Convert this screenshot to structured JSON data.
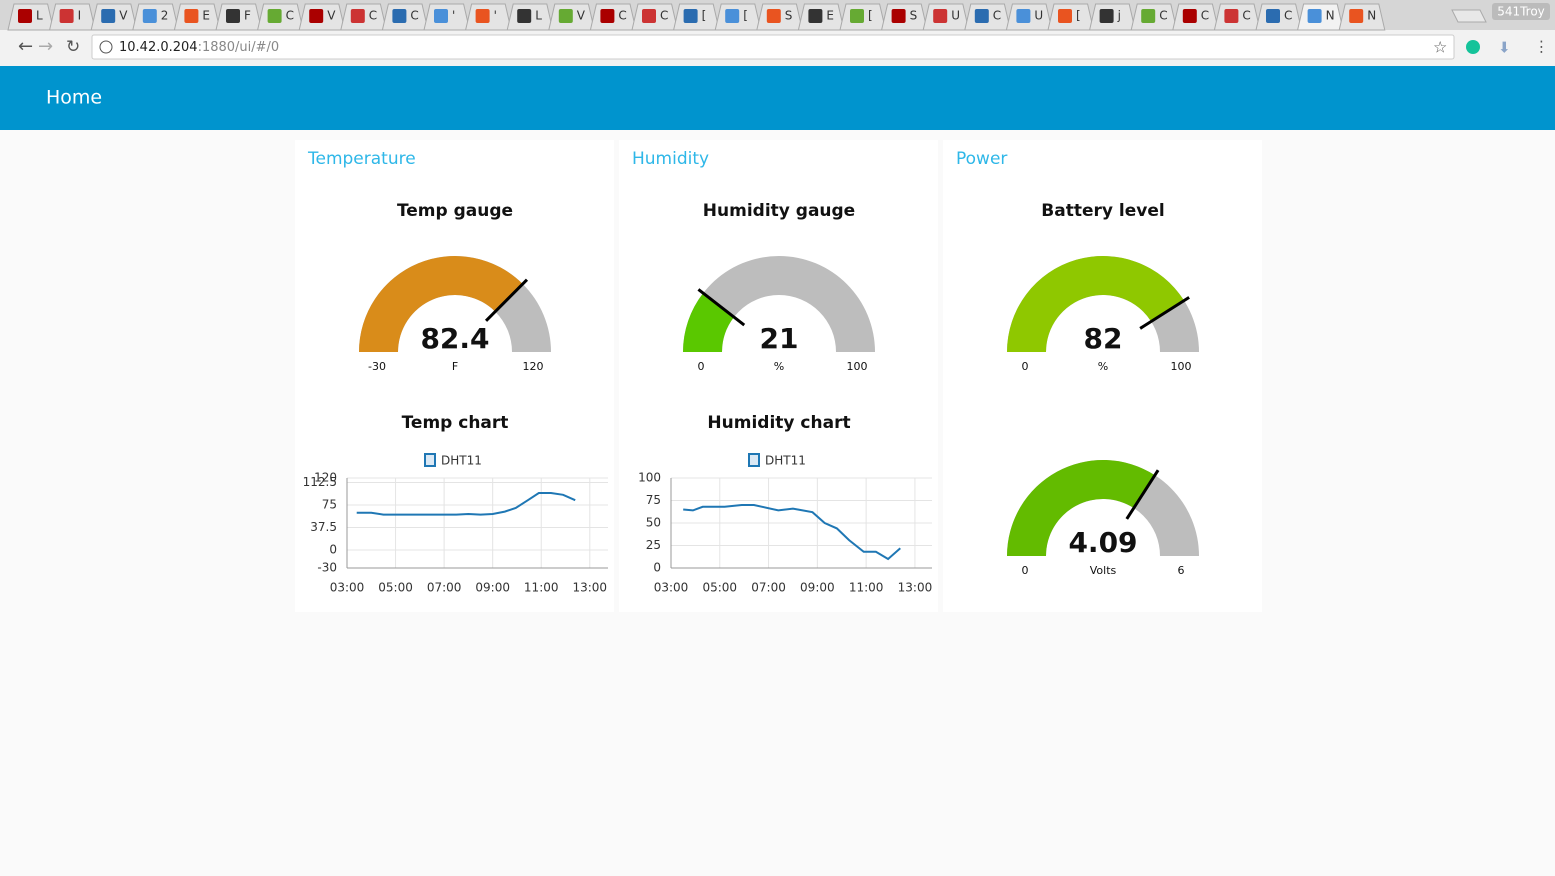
{
  "browser": {
    "tabs": [
      "L",
      "I",
      "V",
      "2",
      "E",
      "F",
      "C",
      "V",
      "C",
      "C",
      "'",
      "'",
      "L",
      "V",
      "C",
      "C",
      "[",
      "[",
      "S",
      "E",
      "[",
      "S",
      "U",
      "C",
      "U",
      "[",
      "j",
      "C",
      "C",
      "C",
      "C",
      "N",
      "N"
    ],
    "profile": "541Troy",
    "url_host": "10.42.0.204",
    "url_path": ":1880/ui/#/0"
  },
  "header": {
    "title": "Home"
  },
  "groups": [
    {
      "title": "Temperature",
      "widgets": [
        {
          "type": "gauge",
          "title": "Temp gauge",
          "value": 82.4,
          "min": -30,
          "max": 120,
          "unit": "F",
          "color": "#d98c1a"
        },
        {
          "type": "line",
          "title": "Temp chart",
          "grid": true,
          "x": [
            3.4,
            4,
            4.5,
            5,
            6,
            7,
            7.5,
            8,
            8.5,
            9,
            9.5,
            9.95,
            10.45,
            10.9,
            11.4,
            11.9,
            12.4
          ],
          "series": [
            {
              "name": "DHT11",
              "color": "#1f77b4",
              "values": [
                62,
                62,
                59,
                59,
                59,
                59,
                59,
                60,
                59,
                60,
                64,
                70,
                83,
                95,
                95,
                92,
                83
              ]
            }
          ],
          "xlim": [
            3,
            13.75
          ],
          "xticks": [
            {
              "value": 3,
              "label": "03:00"
            },
            {
              "value": 5,
              "label": "05:00"
            },
            {
              "value": 7,
              "label": "07:00"
            },
            {
              "value": 9,
              "label": "09:00"
            },
            {
              "value": 11,
              "label": "11:00"
            },
            {
              "value": 13,
              "label": "13:00"
            }
          ],
          "ylim": [
            -30,
            120
          ],
          "yticks": [
            -30,
            0,
            37.5,
            75,
            112.5,
            120
          ]
        }
      ]
    },
    {
      "title": "Humidity",
      "widgets": [
        {
          "type": "gauge",
          "title": "Humidity gauge",
          "value": 21,
          "min": 0,
          "max": 100,
          "unit": "%",
          "color": "#5ac800"
        },
        {
          "type": "line",
          "title": "Humidity chart",
          "grid": true,
          "x": [
            3.5,
            3.9,
            4.3,
            5.2,
            5.9,
            6.4,
            7.4,
            8,
            8.8,
            9.3,
            9.8,
            10.3,
            10.9,
            11.4,
            11.9,
            12.4
          ],
          "series": [
            {
              "name": "DHT11",
              "color": "#1f77b4",
              "values": [
                65,
                64,
                68,
                68,
                70,
                70,
                64,
                66,
                62,
                50,
                44,
                31,
                18,
                18,
                10,
                22
              ]
            }
          ],
          "xlim": [
            3,
            13.7
          ],
          "xticks": [
            {
              "value": 3,
              "label": "03:00"
            },
            {
              "value": 5,
              "label": "05:00"
            },
            {
              "value": 7,
              "label": "07:00"
            },
            {
              "value": 9,
              "label": "09:00"
            },
            {
              "value": 11,
              "label": "11:00"
            },
            {
              "value": 13,
              "label": "13:00"
            }
          ],
          "ylim": [
            0,
            100
          ],
          "yticks": [
            0,
            25,
            50,
            75,
            100
          ]
        }
      ]
    },
    {
      "title": "Power",
      "widgets": [
        {
          "type": "gauge",
          "title": "Battery level",
          "value": 82,
          "min": 0,
          "max": 100,
          "unit": "%",
          "color": "#8fc800"
        },
        {
          "type": "gauge",
          "value": 4.09,
          "min": 0,
          "max": 6,
          "unit": "Volts",
          "color": "#63bb00"
        }
      ]
    }
  ]
}
